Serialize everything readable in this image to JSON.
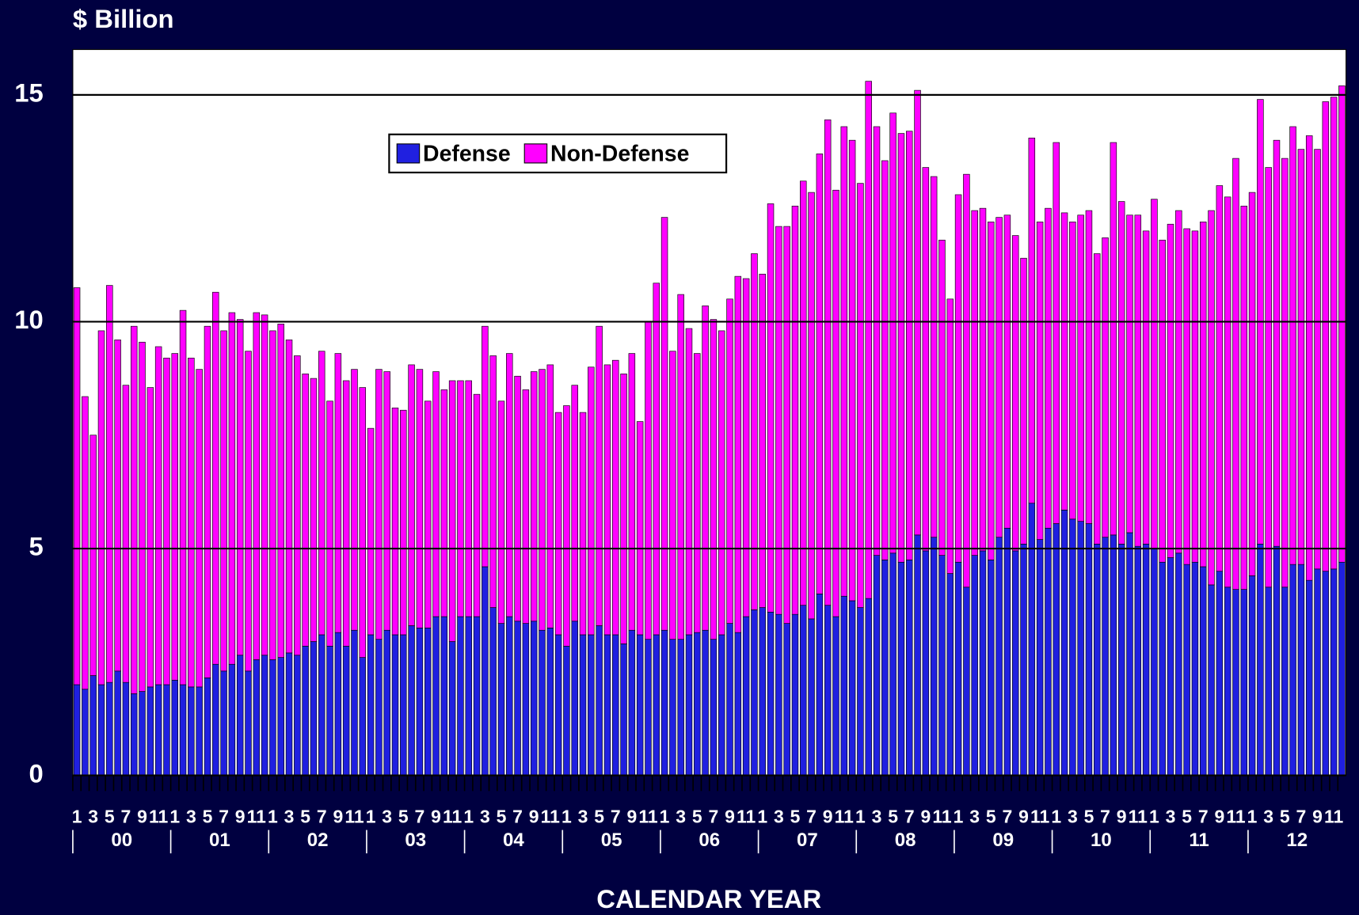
{
  "chart_data": {
    "type": "stacked-bar",
    "y_label": "$ Billion",
    "x_label": "CALENDAR YEAR",
    "categories": [
      "1",
      null,
      "3",
      null,
      "5",
      null,
      "7",
      null,
      "9",
      null,
      "11",
      null,
      "1",
      null,
      "3",
      null,
      "5",
      null,
      "7",
      null,
      "9",
      null,
      "11",
      null,
      "1",
      null,
      "3",
      null,
      "5",
      null,
      "7",
      null,
      "9",
      null,
      "11",
      null,
      "1",
      null,
      "3",
      null,
      "5",
      null,
      "7",
      null,
      "9",
      null,
      "11",
      null,
      "1",
      null,
      "3",
      null,
      "5",
      null,
      "7",
      null,
      "9",
      null,
      "11",
      null,
      "1",
      null,
      "3",
      null,
      "5",
      null,
      "7",
      null,
      "9",
      null,
      "11",
      null,
      "1",
      null,
      "3",
      null,
      "5",
      null,
      "7",
      null,
      "9",
      null,
      "11",
      null,
      "1",
      null,
      "3",
      null,
      "5",
      null,
      "7",
      null,
      "9",
      null,
      "11",
      null,
      "1",
      null,
      "3",
      null,
      "5",
      null,
      "7",
      null,
      "9",
      null,
      "11",
      null,
      "1",
      null,
      "3",
      null,
      "5",
      null,
      "7",
      null,
      "9",
      null,
      "11",
      null,
      "1",
      null,
      "3",
      null,
      "5",
      null,
      "7",
      null,
      "9",
      null,
      "11",
      null,
      "1",
      null,
      "3",
      null,
      "5",
      null,
      "7",
      null,
      "9",
      null,
      "11",
      null,
      "1",
      null,
      "3",
      null,
      "5",
      null,
      "7",
      null,
      "9",
      null,
      "11",
      null
    ],
    "groups": [
      "00",
      "01",
      "02",
      "03",
      "04",
      "05",
      "06",
      "07",
      "08",
      "09",
      "10",
      "11",
      "12"
    ],
    "series": [
      {
        "name": "Defense",
        "color": "#2020e0",
        "values": [
          2.0,
          1.9,
          2.2,
          2.0,
          2.05,
          2.3,
          2.05,
          1.8,
          1.85,
          1.95,
          2.0,
          2.0,
          2.1,
          2.0,
          1.95,
          1.95,
          2.15,
          2.45,
          2.3,
          2.45,
          2.65,
          2.3,
          2.55,
          2.65,
          2.55,
          2.6,
          2.7,
          2.65,
          2.85,
          2.95,
          3.1,
          2.85,
          3.15,
          2.85,
          3.2,
          2.6,
          3.1,
          3.0,
          3.2,
          3.1,
          3.1,
          3.3,
          3.25,
          3.25,
          3.5,
          3.5,
          2.95,
          3.5,
          3.5,
          3.5,
          4.6,
          3.7,
          3.35,
          3.5,
          3.4,
          3.35,
          3.4,
          3.2,
          3.25,
          3.1,
          2.85,
          3.4,
          3.1,
          3.1,
          3.3,
          3.1,
          3.1,
          2.9,
          3.2,
          3.1,
          3.0,
          3.1,
          3.2,
          3.0,
          3.0,
          3.1,
          3.15,
          3.2,
          3.0,
          3.1,
          3.35,
          3.15,
          3.5,
          3.65,
          3.7,
          3.6,
          3.55,
          3.35,
          3.55,
          3.75,
          3.45,
          4.0,
          3.75,
          3.5,
          3.95,
          3.85,
          3.7,
          3.9,
          4.85,
          4.75,
          4.9,
          4.7,
          4.75,
          5.3,
          4.95,
          5.25,
          4.85,
          4.45,
          4.7,
          4.15,
          4.85,
          4.95,
          4.75,
          5.25,
          5.45,
          4.95,
          5.1,
          6.0,
          5.2,
          5.45,
          5.55,
          5.85,
          5.65,
          5.6,
          5.55,
          5.1,
          5.25,
          5.3,
          5.1,
          5.35,
          5.05,
          5.1,
          5.0,
          4.7,
          4.8,
          4.9,
          4.65,
          4.7,
          4.6,
          4.2,
          4.5,
          4.15,
          4.1,
          4.1,
          4.4,
          5.1,
          4.15,
          5.05,
          4.15,
          4.65,
          4.65,
          4.3,
          4.55,
          4.5,
          4.55,
          4.7
        ]
      },
      {
        "name": "Non-Defense",
        "color": "#ff00ff",
        "values": [
          8.75,
          6.45,
          5.3,
          7.8,
          8.75,
          7.3,
          6.55,
          8.1,
          7.7,
          6.6,
          7.45,
          7.2,
          7.2,
          8.25,
          7.25,
          7.0,
          7.75,
          8.2,
          7.5,
          7.75,
          7.4,
          7.05,
          7.65,
          7.5,
          7.25,
          7.35,
          6.9,
          6.6,
          6.0,
          5.8,
          6.25,
          5.4,
          6.15,
          5.85,
          5.75,
          5.95,
          4.55,
          5.95,
          5.7,
          5.0,
          4.95,
          5.75,
          5.7,
          5.0,
          5.4,
          5.0,
          5.75,
          5.2,
          5.2,
          4.9,
          5.3,
          5.55,
          4.9,
          5.8,
          5.4,
          5.15,
          5.5,
          5.75,
          5.8,
          4.9,
          5.3,
          5.2,
          4.9,
          5.9,
          6.6,
          5.95,
          6.05,
          5.95,
          6.1,
          4.7,
          7.0,
          7.75,
          9.1,
          6.35,
          7.6,
          6.75,
          6.15,
          7.15,
          7.05,
          6.7,
          7.15,
          7.85,
          7.45,
          7.85,
          7.35,
          9.0,
          8.55,
          8.75,
          9.0,
          9.35,
          9.4,
          9.7,
          10.7,
          9.4,
          10.35,
          10.15,
          9.35,
          11.4,
          9.45,
          8.8,
          9.7,
          9.45,
          9.45,
          9.8,
          8.45,
          7.95,
          6.95,
          6.05,
          8.1,
          9.1,
          7.6,
          7.55,
          7.45,
          7.05,
          6.9,
          6.95,
          6.3,
          8.05,
          7.0,
          7.05,
          8.4,
          6.55,
          6.55,
          6.75,
          6.9,
          6.4,
          6.6,
          8.65,
          7.55,
          7.0,
          7.3,
          6.9,
          7.7,
          7.1,
          7.35,
          7.55,
          7.4,
          7.3,
          7.6,
          8.25,
          8.5,
          8.6,
          9.5,
          8.45,
          8.45,
          9.8,
          9.25,
          8.95,
          9.45,
          9.65,
          9.15,
          9.8,
          9.25,
          10.35,
          10.4,
          10.5
        ]
      }
    ],
    "ylim": [
      0,
      16
    ],
    "yticks": [
      0,
      5,
      10,
      15
    ],
    "grid": true,
    "legend": "top-center"
  }
}
